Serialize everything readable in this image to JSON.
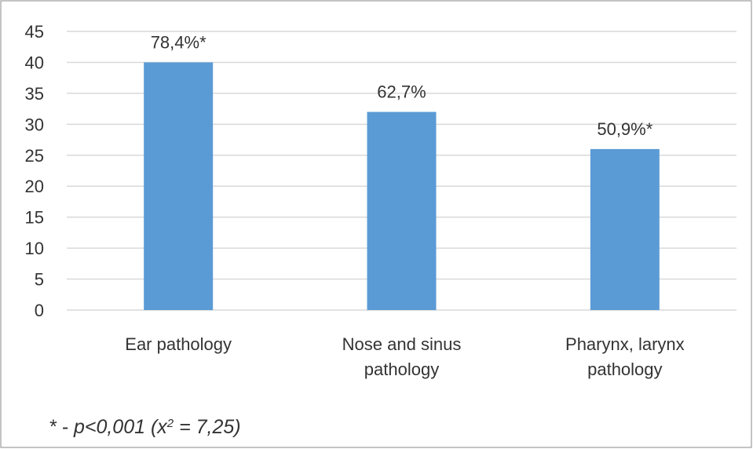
{
  "chart_data": {
    "type": "bar",
    "categories": [
      "Ear pathology",
      "Nose and sinus pathology",
      "Pharynx, larynx pathology"
    ],
    "values": [
      40,
      32,
      26
    ],
    "annotations": [
      "78,4%*",
      "62,7%",
      "50,9%*"
    ],
    "color": "#5b9bd5",
    "ylim": [
      0,
      45
    ],
    "yticks": [
      0,
      5,
      10,
      15,
      20,
      25,
      30,
      35,
      40,
      45
    ],
    "grid": true,
    "footnote": [
      "* - p<0,001 (x",
      "2",
      " = 7,25)"
    ]
  }
}
